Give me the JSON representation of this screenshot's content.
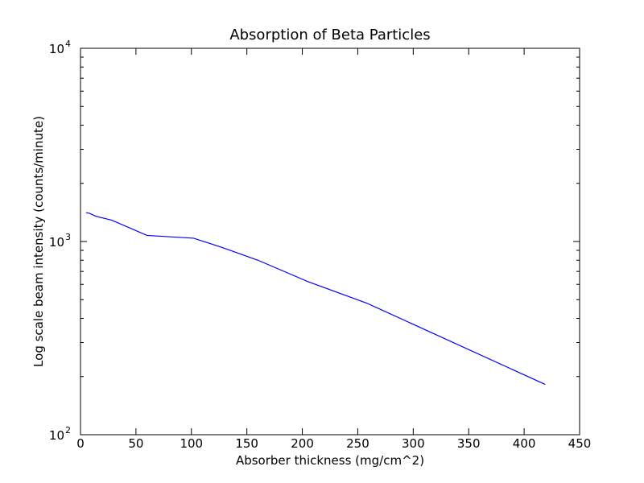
{
  "chart_data": {
    "type": "line",
    "title": "Absorption of Beta Particles",
    "xlabel": "Absorber thickness (mg/cm^2)",
    "ylabel": "Log scale beam intensity (counts/minute)",
    "xlim": [
      0,
      450
    ],
    "ylim": [
      100,
      10000
    ],
    "yscale": "log",
    "grid": false,
    "x_ticks": [
      "0",
      "50",
      "100",
      "150",
      "200",
      "250",
      "300",
      "350",
      "400",
      "450"
    ],
    "y_ticks": [
      {
        "base": "10",
        "exp": "2"
      },
      {
        "base": "10",
        "exp": "3"
      },
      {
        "base": "10",
        "exp": "4"
      }
    ],
    "series": [
      {
        "color": "#0000ff",
        "x": [
          5,
          8,
          14,
          28,
          60,
          102,
          128,
          160,
          205,
          258,
          419
        ],
        "y": [
          1410,
          1400,
          1350,
          1290,
          1075,
          1040,
          930,
          800,
          620,
          480,
          182
        ]
      }
    ]
  }
}
